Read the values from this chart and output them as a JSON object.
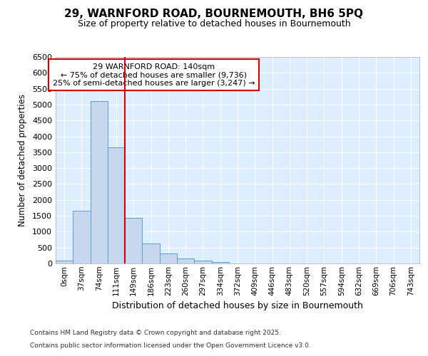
{
  "title1": "29, WARNFORD ROAD, BOURNEMOUTH, BH6 5PQ",
  "title2": "Size of property relative to detached houses in Bournemouth",
  "xlabel": "Distribution of detached houses by size in Bournemouth",
  "ylabel": "Number of detached properties",
  "bin_labels": [
    "0sqm",
    "37sqm",
    "74sqm",
    "111sqm",
    "149sqm",
    "186sqm",
    "223sqm",
    "260sqm",
    "297sqm",
    "334sqm",
    "372sqm",
    "409sqm",
    "446sqm",
    "483sqm",
    "520sqm",
    "557sqm",
    "594sqm",
    "632sqm",
    "669sqm",
    "706sqm",
    "743sqm"
  ],
  "bar_values": [
    80,
    1650,
    5100,
    3650,
    1430,
    620,
    320,
    150,
    80,
    50,
    0,
    0,
    0,
    0,
    0,
    0,
    0,
    0,
    0,
    0,
    0
  ],
  "bar_color": "#c5d8ed",
  "bar_edge_color": "#5b9bd5",
  "vline_color": "#cc0000",
  "annotation_title": "29 WARNFORD ROAD: 140sqm",
  "annotation_line1": "← 75% of detached houses are smaller (9,736)",
  "annotation_line2": "25% of semi-detached houses are larger (3,247) →",
  "annotation_box_color": "#ffffff",
  "annotation_box_edge": "#cc0000",
  "ylim": [
    0,
    6500
  ],
  "yticks": [
    0,
    500,
    1000,
    1500,
    2000,
    2500,
    3000,
    3500,
    4000,
    4500,
    5000,
    5500,
    6000,
    6500
  ],
  "plot_bg_color": "#ddeeff",
  "fig_bg_color": "#ffffff",
  "footer1": "Contains HM Land Registry data © Crown copyright and database right 2025.",
  "footer2": "Contains public sector information licensed under the Open Government Licence v3.0."
}
